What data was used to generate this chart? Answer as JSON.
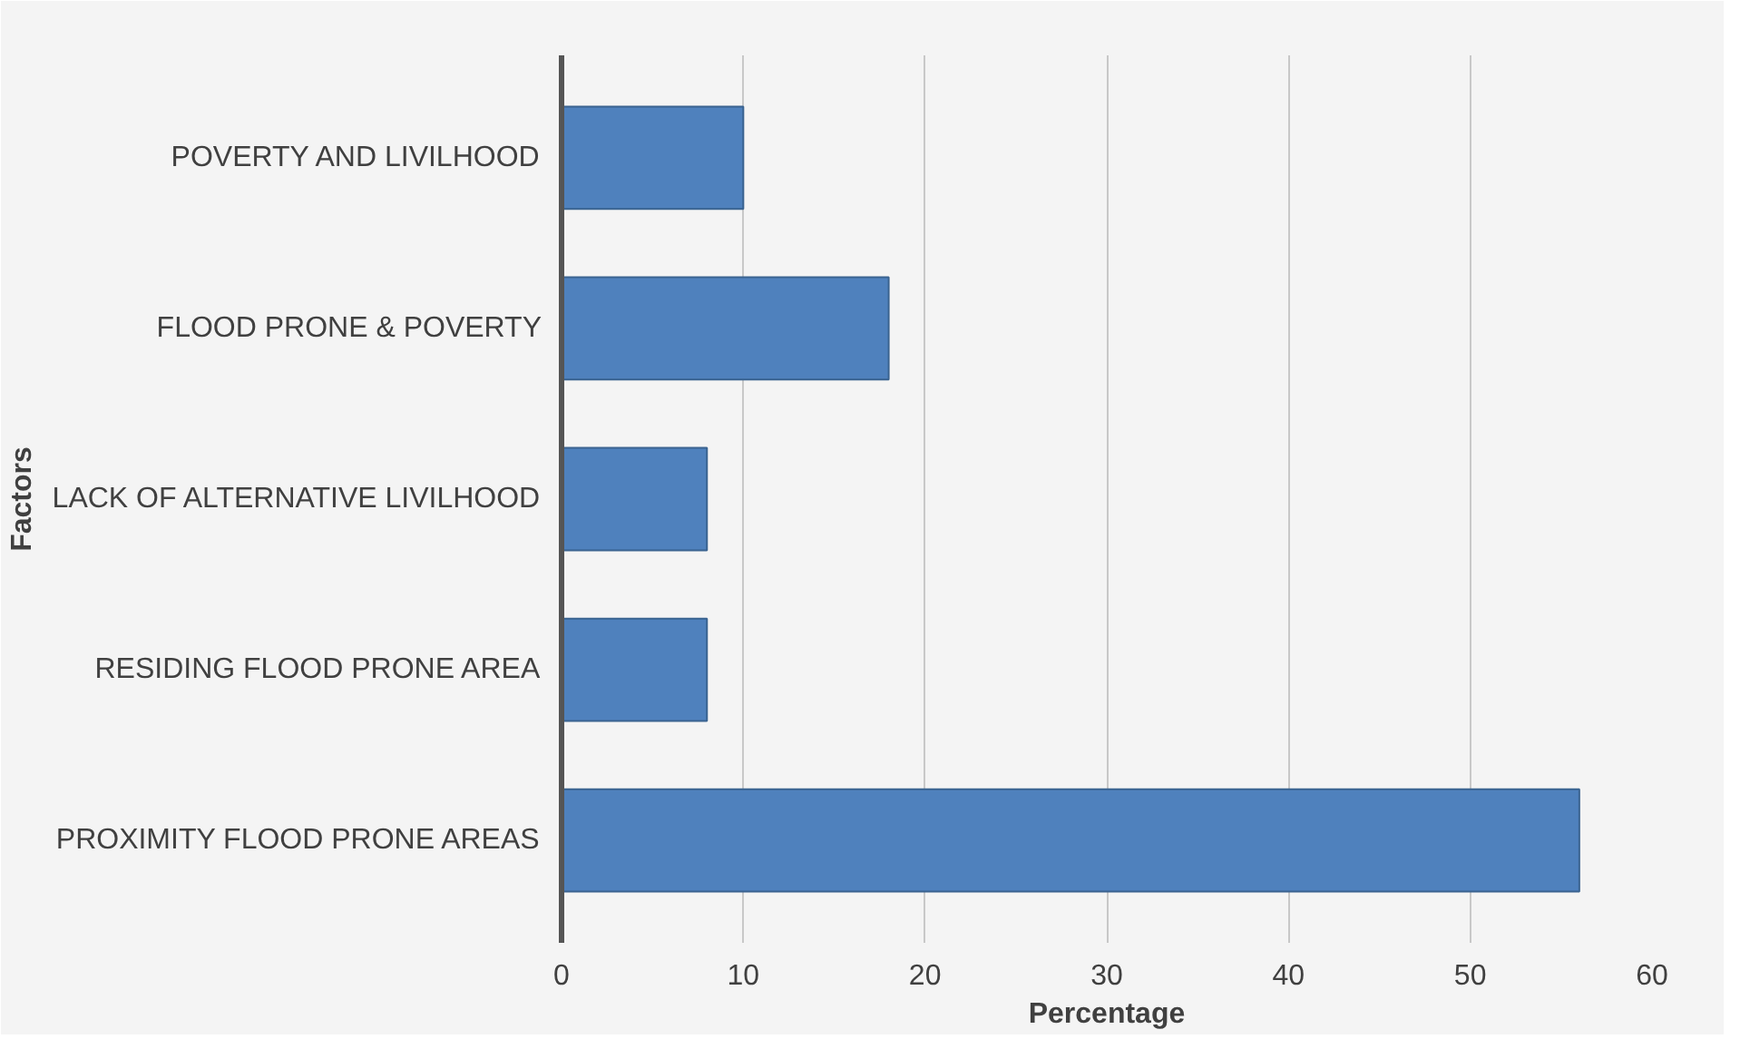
{
  "chart_data": {
    "type": "bar",
    "orientation": "horizontal",
    "xlabel": "Percentage",
    "ylabel": "Factors",
    "categories": [
      "POVERTY AND LIVILHOOD",
      "FLOOD PRONE & POVERTY",
      "LACK OF ALTERNATIVE LIVILHOOD",
      "RESIDING FLOOD PRONE AREA",
      "PROXIMITY FLOOD PRONE AREAS"
    ],
    "values": [
      10,
      18,
      8,
      8,
      56
    ],
    "color": "#4f81bd",
    "xlim": [
      0,
      60
    ],
    "xticks": [
      0,
      10,
      20,
      30,
      40,
      50,
      60
    ],
    "grid": "x"
  }
}
